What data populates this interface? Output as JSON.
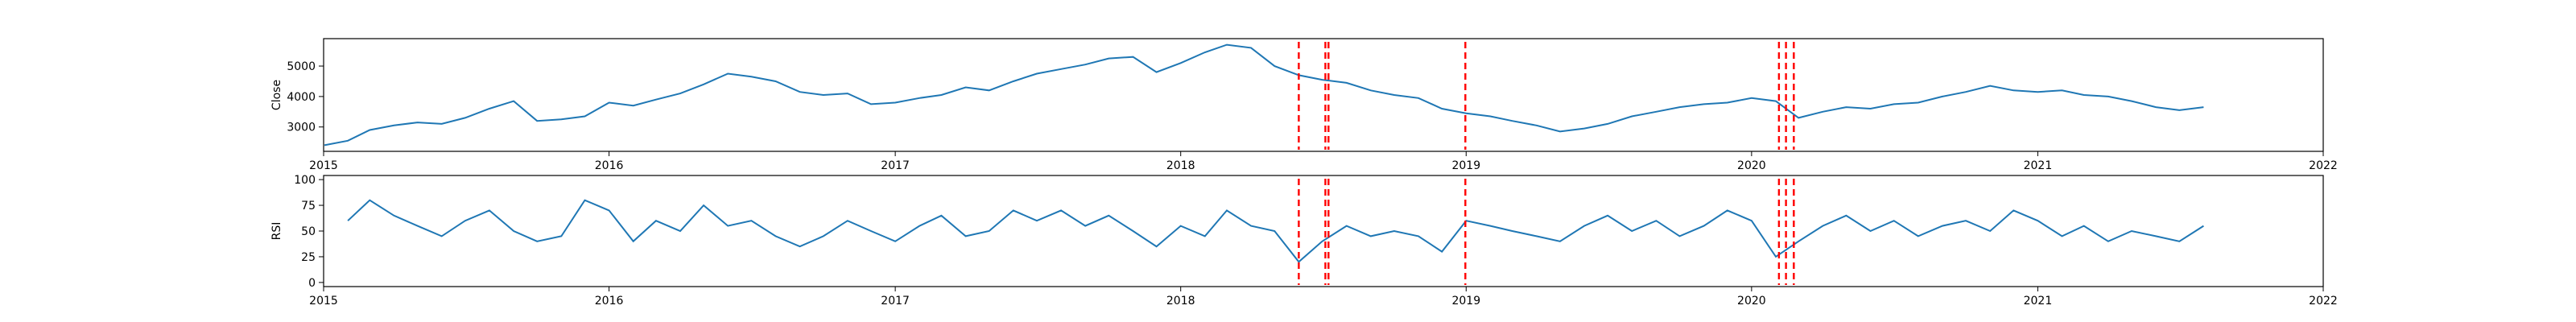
{
  "chart_data": [
    {
      "type": "line",
      "ylabel": "Close",
      "xlabel": "",
      "title": "",
      "xlim": [
        "2015-01-01",
        "2022-01-01"
      ],
      "ylim": [
        2200,
        5900
      ],
      "x_ticks": [
        "2015",
        "2016",
        "2017",
        "2018",
        "2019",
        "2020",
        "2021",
        "2022"
      ],
      "y_ticks": [
        3000,
        4000,
        5000
      ],
      "line_color": "#1f77b4",
      "grid": false,
      "series": [
        {
          "x": [
            "2015-01-02",
            "2015-02-01",
            "2015-03-01",
            "2015-04-01",
            "2015-05-01",
            "2015-06-01",
            "2015-07-01",
            "2015-08-01",
            "2015-09-01",
            "2015-10-01",
            "2015-11-01",
            "2015-12-01",
            "2016-01-01",
            "2016-02-01",
            "2016-03-01",
            "2016-04-01",
            "2016-05-01",
            "2016-06-01",
            "2016-07-01",
            "2016-08-01",
            "2016-09-01",
            "2016-10-01",
            "2016-11-01",
            "2016-12-01",
            "2017-01-01",
            "2017-02-01",
            "2017-03-01",
            "2017-04-01",
            "2017-05-01",
            "2017-06-01",
            "2017-07-01",
            "2017-08-01",
            "2017-09-01",
            "2017-10-01",
            "2017-11-01",
            "2017-12-01",
            "2018-01-01",
            "2018-02-01",
            "2018-03-01",
            "2018-04-01",
            "2018-05-01",
            "2018-06-01",
            "2018-07-01",
            "2018-08-01",
            "2018-09-01",
            "2018-10-01",
            "2018-11-01",
            "2018-12-01",
            "2019-01-01",
            "2019-02-01",
            "2019-03-01",
            "2019-04-01",
            "2019-05-01",
            "2019-06-01",
            "2019-07-01",
            "2019-08-01",
            "2019-09-01",
            "2019-10-01",
            "2019-11-01",
            "2019-12-01",
            "2020-01-01",
            "2020-02-01",
            "2020-03-01",
            "2020-04-01",
            "2020-05-01",
            "2020-06-01",
            "2020-07-01",
            "2020-08-01",
            "2020-09-01",
            "2020-10-01",
            "2020-11-01",
            "2020-12-01",
            "2021-01-01",
            "2021-02-01",
            "2021-03-01",
            "2021-04-01",
            "2021-05-01",
            "2021-06-01",
            "2021-07-01",
            "2021-08-01"
          ],
          "values": [
            2400,
            2550,
            2900,
            3050,
            3150,
            3100,
            3300,
            3600,
            3850,
            3200,
            3250,
            3350,
            3800,
            3700,
            3900,
            4100,
            4400,
            4750,
            4650,
            4500,
            4150,
            4050,
            4100,
            3750,
            3800,
            3950,
            4050,
            4300,
            4200,
            4500,
            4750,
            4900,
            5050,
            5250,
            5300,
            4800,
            5100,
            5450,
            5700,
            5600,
            5000,
            4700,
            4550,
            4450,
            4200,
            4050,
            3950,
            3600,
            3450,
            3350,
            3200,
            3050,
            2850,
            2950,
            3100,
            3350,
            3500,
            3650,
            3750,
            3800,
            3950,
            3850,
            3300,
            3500,
            3650,
            3600,
            3750,
            3800,
            4000,
            4150,
            4350,
            4200,
            4150,
            4200,
            4050,
            4000,
            3850,
            3650,
            3550,
            3650
          ]
        }
      ]
    },
    {
      "type": "line",
      "ylabel": "RSI",
      "xlabel": "",
      "title": "",
      "xlim": [
        "2015-01-01",
        "2022-01-01"
      ],
      "ylim": [
        -4,
        104
      ],
      "x_ticks": [
        "2015",
        "2016",
        "2017",
        "2018",
        "2019",
        "2020",
        "2021",
        "2022"
      ],
      "y_ticks": [
        0,
        25,
        50,
        75,
        100
      ],
      "line_color": "#1f77b4",
      "grid": false,
      "series": [
        {
          "x": [
            "2015-02-01",
            "2015-03-01",
            "2015-04-01",
            "2015-05-01",
            "2015-06-01",
            "2015-07-01",
            "2015-08-01",
            "2015-09-01",
            "2015-10-01",
            "2015-11-01",
            "2015-12-01",
            "2016-01-01",
            "2016-02-01",
            "2016-03-01",
            "2016-04-01",
            "2016-05-01",
            "2016-06-01",
            "2016-07-01",
            "2016-08-01",
            "2016-09-01",
            "2016-10-01",
            "2016-11-01",
            "2016-12-01",
            "2017-01-01",
            "2017-02-01",
            "2017-03-01",
            "2017-04-01",
            "2017-05-01",
            "2017-06-01",
            "2017-07-01",
            "2017-08-01",
            "2017-09-01",
            "2017-10-01",
            "2017-11-01",
            "2017-12-01",
            "2018-01-01",
            "2018-02-01",
            "2018-03-01",
            "2018-04-01",
            "2018-05-01",
            "2018-06-01",
            "2018-07-01",
            "2018-08-01",
            "2018-09-01",
            "2018-10-01",
            "2018-11-01",
            "2018-12-01",
            "2019-01-01",
            "2019-02-01",
            "2019-03-01",
            "2019-04-01",
            "2019-05-01",
            "2019-06-01",
            "2019-07-01",
            "2019-08-01",
            "2019-09-01",
            "2019-10-01",
            "2019-11-01",
            "2019-12-01",
            "2020-01-01",
            "2020-02-01",
            "2020-03-01",
            "2020-04-01",
            "2020-05-01",
            "2020-06-01",
            "2020-07-01",
            "2020-08-01",
            "2020-09-01",
            "2020-10-01",
            "2020-11-01",
            "2020-12-01",
            "2021-01-01",
            "2021-02-01",
            "2021-03-01",
            "2021-04-01",
            "2021-05-01",
            "2021-06-01",
            "2021-07-01",
            "2021-08-01"
          ],
          "values": [
            60,
            80,
            65,
            55,
            45,
            60,
            70,
            50,
            40,
            45,
            80,
            70,
            40,
            60,
            50,
            75,
            55,
            60,
            45,
            35,
            45,
            60,
            50,
            40,
            55,
            65,
            45,
            50,
            70,
            60,
            70,
            55,
            65,
            50,
            35,
            55,
            45,
            70,
            55,
            50,
            20,
            40,
            55,
            45,
            50,
            45,
            30,
            60,
            55,
            50,
            45,
            40,
            55,
            65,
            50,
            60,
            45,
            55,
            70,
            60,
            25,
            40,
            55,
            65,
            50,
            60,
            45,
            55,
            60,
            50,
            70,
            60,
            45,
            55,
            40,
            50,
            45,
            40,
            55
          ]
        }
      ]
    }
  ],
  "event_lines": {
    "color": "#ff0000",
    "dates": [
      "2018-06-01",
      "2018-07-05",
      "2018-07-09",
      "2018-12-31",
      "2020-02-05",
      "2020-02-14",
      "2020-02-24"
    ]
  }
}
